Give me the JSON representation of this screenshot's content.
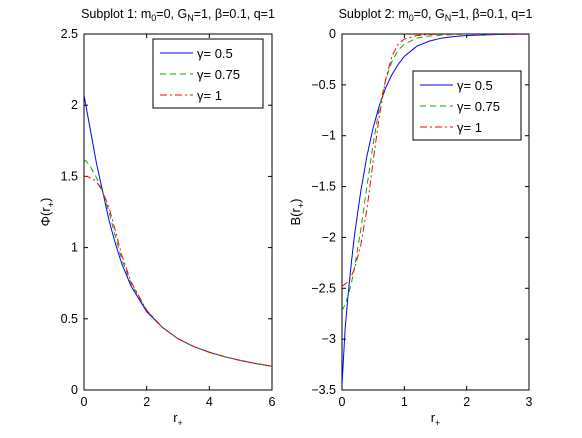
{
  "chart_data": [
    {
      "type": "line",
      "title": "Subplot 1: m_0=0, G_N=1, β=0.1, q=1",
      "title_parts": {
        "prefix": "Subplot 1: m",
        "sub1": "0",
        "mid": "=0, G",
        "sub2": "N",
        "suffix": "=1, β=0.1, q=1"
      },
      "xlabel": "r_+",
      "xlabel_parts": {
        "base": "r",
        "sub": "+"
      },
      "ylabel": "Φ(r_+)",
      "ylabel_parts": {
        "base": "Φ(r",
        "sub": "+",
        "close": ")"
      },
      "xlim": [
        0,
        6
      ],
      "ylim": [
        0,
        2.5
      ],
      "xticks": [
        0,
        2,
        4,
        6
      ],
      "yticks": [
        0,
        0.5,
        1,
        1.5,
        2,
        2.5
      ],
      "ytick_labels": [
        "0",
        "0.5",
        "1",
        "1.5",
        "2",
        "2.5"
      ],
      "legend_position": "top-right",
      "series": [
        {
          "name": "γ= 0.5",
          "color": "#0000ff",
          "dash": "solid",
          "x": [
            0,
            0.1,
            0.2,
            0.3,
            0.4,
            0.5,
            0.6,
            0.8,
            1.0,
            1.2,
            1.5,
            2.0,
            2.5,
            3.0,
            3.5,
            4.0,
            4.5,
            5.0,
            5.5,
            6.0
          ],
          "y": [
            2.07,
            1.95,
            1.83,
            1.71,
            1.59,
            1.49,
            1.39,
            1.19,
            1.03,
            0.89,
            0.73,
            0.55,
            0.44,
            0.36,
            0.305,
            0.265,
            0.233,
            0.207,
            0.185,
            0.167
          ]
        },
        {
          "name": "γ= 0.75",
          "color": "#00aa00",
          "dash": "dashed",
          "x": [
            0,
            0.1,
            0.2,
            0.3,
            0.4,
            0.5,
            0.6,
            0.8,
            1.0,
            1.2,
            1.5,
            2.0,
            2.5,
            3.0,
            3.5,
            4.0,
            4.5,
            5.0,
            5.5,
            6.0
          ],
          "y": [
            1.62,
            1.6,
            1.57,
            1.53,
            1.49,
            1.44,
            1.39,
            1.25,
            1.08,
            0.92,
            0.75,
            0.56,
            0.44,
            0.36,
            0.305,
            0.265,
            0.233,
            0.207,
            0.185,
            0.167
          ]
        },
        {
          "name": "γ= 1",
          "color": "#ff0000",
          "dash": "dashdot",
          "x": [
            0,
            0.1,
            0.2,
            0.3,
            0.4,
            0.5,
            0.6,
            0.8,
            1.0,
            1.2,
            1.5,
            2.0,
            2.5,
            3.0,
            3.5,
            4.0,
            4.5,
            5.0,
            5.5,
            6.0
          ],
          "y": [
            1.5,
            1.5,
            1.49,
            1.48,
            1.46,
            1.43,
            1.39,
            1.28,
            1.12,
            0.95,
            0.76,
            0.56,
            0.44,
            0.36,
            0.305,
            0.265,
            0.233,
            0.207,
            0.185,
            0.167
          ]
        }
      ]
    },
    {
      "type": "line",
      "title": "Subplot 2: m_0=0, G_N=1, β=0.1, q=1",
      "title_parts": {
        "prefix": "Subplot 2: m",
        "sub1": "0",
        "mid": "=0, G",
        "sub2": "N",
        "suffix": "=1, β=0.1, q=1"
      },
      "xlabel": "r_+",
      "xlabel_parts": {
        "base": "r",
        "sub": "+"
      },
      "ylabel": "B(r_+)",
      "ylabel_parts": {
        "base": "B(r",
        "sub": "+",
        "close": ")"
      },
      "xlim": [
        0,
        3
      ],
      "ylim": [
        -3.5,
        0
      ],
      "xticks": [
        0,
        1,
        2,
        3
      ],
      "yticks": [
        -3.5,
        -3,
        -2.5,
        -2,
        -1.5,
        -1,
        -0.5,
        0
      ],
      "ytick_labels": [
        "−3.5",
        "−3",
        "−2.5",
        "−2",
        "−1.5",
        "−1",
        "−0.5",
        "0"
      ],
      "legend_position": "top-right",
      "series": [
        {
          "name": "γ= 0.5",
          "color": "#0000ff",
          "dash": "solid",
          "x": [
            0,
            0.05,
            0.1,
            0.15,
            0.2,
            0.3,
            0.4,
            0.5,
            0.6,
            0.7,
            0.8,
            0.9,
            1.0,
            1.2,
            1.4,
            1.6,
            1.8,
            2.0,
            2.5,
            3.0
          ],
          "y": [
            -3.45,
            -2.9,
            -2.55,
            -2.25,
            -1.98,
            -1.55,
            -1.2,
            -0.92,
            -0.7,
            -0.53,
            -0.4,
            -0.3,
            -0.22,
            -0.12,
            -0.07,
            -0.04,
            -0.025,
            -0.015,
            -0.005,
            -0.002
          ]
        },
        {
          "name": "γ= 0.75",
          "color": "#00aa00",
          "dash": "dashed",
          "x": [
            0,
            0.05,
            0.1,
            0.15,
            0.2,
            0.3,
            0.4,
            0.5,
            0.6,
            0.7,
            0.8,
            0.9,
            1.0,
            1.2,
            1.4,
            1.6,
            1.8,
            2.0,
            2.5,
            3.0
          ],
          "y": [
            -2.72,
            -2.66,
            -2.57,
            -2.45,
            -2.3,
            -1.93,
            -1.5,
            -1.08,
            -0.72,
            -0.45,
            -0.27,
            -0.16,
            -0.1,
            -0.04,
            -0.02,
            -0.01,
            -0.005,
            -0.003,
            -0.001,
            0
          ]
        },
        {
          "name": "γ= 1",
          "color": "#ff0000",
          "dash": "dashdot",
          "x": [
            0,
            0.05,
            0.1,
            0.15,
            0.2,
            0.3,
            0.4,
            0.5,
            0.6,
            0.7,
            0.8,
            0.9,
            1.0,
            1.2,
            1.4,
            1.6,
            1.8,
            2.0,
            2.5,
            3.0
          ],
          "y": [
            -2.48,
            -2.46,
            -2.43,
            -2.38,
            -2.31,
            -2.08,
            -1.72,
            -1.25,
            -0.8,
            -0.45,
            -0.22,
            -0.1,
            -0.05,
            -0.015,
            -0.005,
            -0.002,
            -0.001,
            0,
            0,
            0
          ]
        }
      ]
    }
  ]
}
